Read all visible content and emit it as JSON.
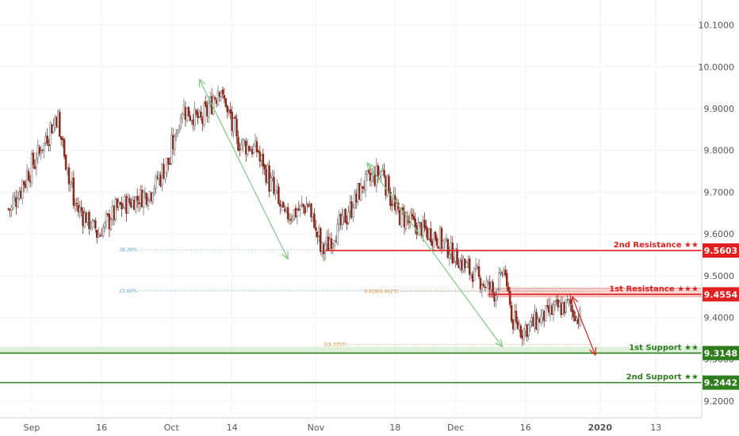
{
  "chart_data": {
    "type": "candlestick",
    "y_range": [
      9.16,
      10.16
    ],
    "y_ticks": [
      {
        "value": 10.1,
        "label": "10.1000"
      },
      {
        "value": 10.0,
        "label": "10.0000"
      },
      {
        "value": 9.9,
        "label": "9.9000"
      },
      {
        "value": 9.8,
        "label": "9.8000"
      },
      {
        "value": 9.7,
        "label": "9.7000"
      },
      {
        "value": 9.6,
        "label": "9.6000"
      },
      {
        "value": 9.5,
        "label": "9.5000"
      },
      {
        "value": 9.4,
        "label": "9.4000"
      },
      {
        "value": 9.3,
        "label": "9.3000"
      },
      {
        "value": 9.2,
        "label": "9.2000"
      }
    ],
    "x_ticks": [
      {
        "date": "2019-09-01",
        "label": "Sep",
        "bold": false
      },
      {
        "date": "2019-09-16",
        "label": "16",
        "bold": false
      },
      {
        "date": "2019-10-01",
        "label": "Oct",
        "bold": false
      },
      {
        "date": "2019-10-14",
        "label": "14",
        "bold": false
      },
      {
        "date": "2019-11-01",
        "label": "Nov",
        "bold": false
      },
      {
        "date": "2019-11-18",
        "label": "18",
        "bold": false
      },
      {
        "date": "2019-12-01",
        "label": "Dec",
        "bold": false
      },
      {
        "date": "2019-12-16",
        "label": "16",
        "bold": false
      },
      {
        "date": "2020-01-01",
        "label": "2020",
        "bold": true
      },
      {
        "date": "2020-01-13",
        "label": "13",
        "bold": false
      }
    ],
    "key_closes": [
      {
        "date": "2019-08-27",
        "close": 9.66
      },
      {
        "date": "2019-09-02",
        "close": 9.79
      },
      {
        "date": "2019-09-06",
        "close": 9.88
      },
      {
        "date": "2019-09-10",
        "close": 9.67
      },
      {
        "date": "2019-09-15",
        "close": 9.6
      },
      {
        "date": "2019-09-19",
        "close": 9.66
      },
      {
        "date": "2019-09-26",
        "close": 9.7
      },
      {
        "date": "2019-09-30",
        "close": 9.77
      },
      {
        "date": "2019-10-03",
        "close": 9.9
      },
      {
        "date": "2019-10-07",
        "close": 9.87
      },
      {
        "date": "2019-10-11",
        "close": 9.95
      },
      {
        "date": "2019-10-15",
        "close": 9.82
      },
      {
        "date": "2019-10-19",
        "close": 9.8
      },
      {
        "date": "2019-10-25",
        "close": 9.64
      },
      {
        "date": "2019-10-30",
        "close": 9.67
      },
      {
        "date": "2019-11-02",
        "close": 9.56
      },
      {
        "date": "2019-11-06",
        "close": 9.62
      },
      {
        "date": "2019-11-11",
        "close": 9.72
      },
      {
        "date": "2019-11-15",
        "close": 9.75
      },
      {
        "date": "2019-11-18",
        "close": 9.65
      },
      {
        "date": "2019-11-22",
        "close": 9.62
      },
      {
        "date": "2019-11-27",
        "close": 9.59
      },
      {
        "date": "2019-12-02",
        "close": 9.53
      },
      {
        "date": "2019-12-06",
        "close": 9.49
      },
      {
        "date": "2019-12-09",
        "close": 9.46
      },
      {
        "date": "2019-12-11",
        "close": 9.51
      },
      {
        "date": "2019-12-13",
        "close": 9.39
      },
      {
        "date": "2019-12-15",
        "close": 9.37
      },
      {
        "date": "2019-12-18",
        "close": 9.39
      },
      {
        "date": "2019-12-22",
        "close": 9.42
      },
      {
        "date": "2019-12-25",
        "close": 9.43
      },
      {
        "date": "2019-12-27",
        "close": 9.4
      }
    ],
    "levels": [
      {
        "name": "2nd Resistance",
        "label": "2nd Resistance ★★",
        "value": 9.5603,
        "tag": "9.5603",
        "color": "#e02020",
        "start_date": "2019-11-03"
      },
      {
        "name": "1st Resistance",
        "label": "1st Resistance ★★★",
        "value": 9.4554,
        "tag": "9.4554",
        "color": "#e02020",
        "start_date": "2019-12-08"
      },
      {
        "name": "1st Support",
        "label": "1st Support ★★",
        "value": 9.3148,
        "tag": "9.3148",
        "color": "#2e7d1f",
        "start_date": "2019-08-24"
      },
      {
        "name": "2nd Support",
        "label": "2nd Support ★★",
        "value": 9.2442,
        "tag": "9.2442",
        "color": "#2e7d1f",
        "start_date": "2019-08-24"
      }
    ],
    "resistance_zone": {
      "top": 9.47,
      "bottom": 9.45,
      "start_date": "2019-12-08",
      "color": "#f08080"
    },
    "support_zone": {
      "top": 9.33,
      "bottom": 9.315,
      "color": "#b6dfb0"
    },
    "fib_levels": [
      {
        "label": "38.20%",
        "value": 9.562,
        "color": "#5aa0c8",
        "start_date": "2019-09-24",
        "end_date": "2019-11-03"
      },
      {
        "label": "23.60%",
        "value": 9.464,
        "color": "#5aa0c8",
        "start_date": "2019-09-24",
        "end_date": "2019-12-26"
      },
      {
        "label": "0.618(9.4623)",
        "value": 9.4623,
        "color": "#d98a2b",
        "start_date": "2019-11-19",
        "end_date": "2020-01-01"
      },
      {
        "label": "1(9.3357)",
        "value": 9.3357,
        "color": "#d98a2b",
        "start_date": "2019-11-08",
        "end_date": "2020-01-01"
      }
    ],
    "arrows": [
      {
        "color": "#7fc97f",
        "from": {
          "date": "2019-10-07",
          "value": 9.97
        },
        "to": {
          "date": "2019-10-26",
          "value": 9.54
        }
      },
      {
        "color": "#7fc97f",
        "from": {
          "date": "2019-11-12",
          "value": 9.77
        },
        "to": {
          "date": "2019-12-11",
          "value": 9.33
        }
      },
      {
        "color": "#e02020",
        "from": {
          "date": "2019-12-26",
          "value": 9.45
        },
        "to": {
          "date": "2019-12-31",
          "value": 9.31
        }
      }
    ],
    "colors": {
      "up": "#6f6f6f",
      "down": "#8a2b1f"
    }
  }
}
